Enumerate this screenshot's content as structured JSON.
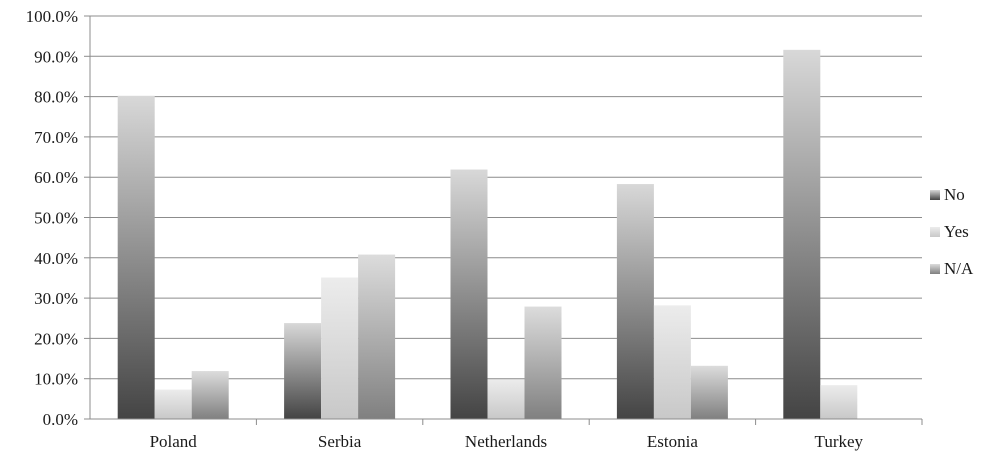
{
  "chart_data": {
    "type": "bar",
    "title": "",
    "xlabel": "",
    "ylabel": "",
    "categories": [
      "Poland",
      "Serbia",
      "Netherlands",
      "Estonia",
      "Turkey"
    ],
    "series": [
      {
        "name": "No",
        "values": [
          80.2,
          23.8,
          61.9,
          58.3,
          91.6
        ],
        "color": "#555555"
      },
      {
        "name": "Yes",
        "values": [
          7.3,
          35.1,
          9.8,
          28.2,
          8.4
        ],
        "color": "#d9d9d9"
      },
      {
        "name": "N/A",
        "values": [
          11.9,
          40.8,
          27.9,
          13.2,
          0.0
        ],
        "color": "#9b9b9b"
      }
    ],
    "ylim": [
      0,
      100
    ],
    "yticks": [
      "0.0%",
      "10.0%",
      "20.0%",
      "30.0%",
      "40.0%",
      "50.0%",
      "60.0%",
      "70.0%",
      "80.0%",
      "90.0%",
      "100.0%"
    ],
    "grid": true,
    "legend": {
      "position": "right"
    }
  }
}
